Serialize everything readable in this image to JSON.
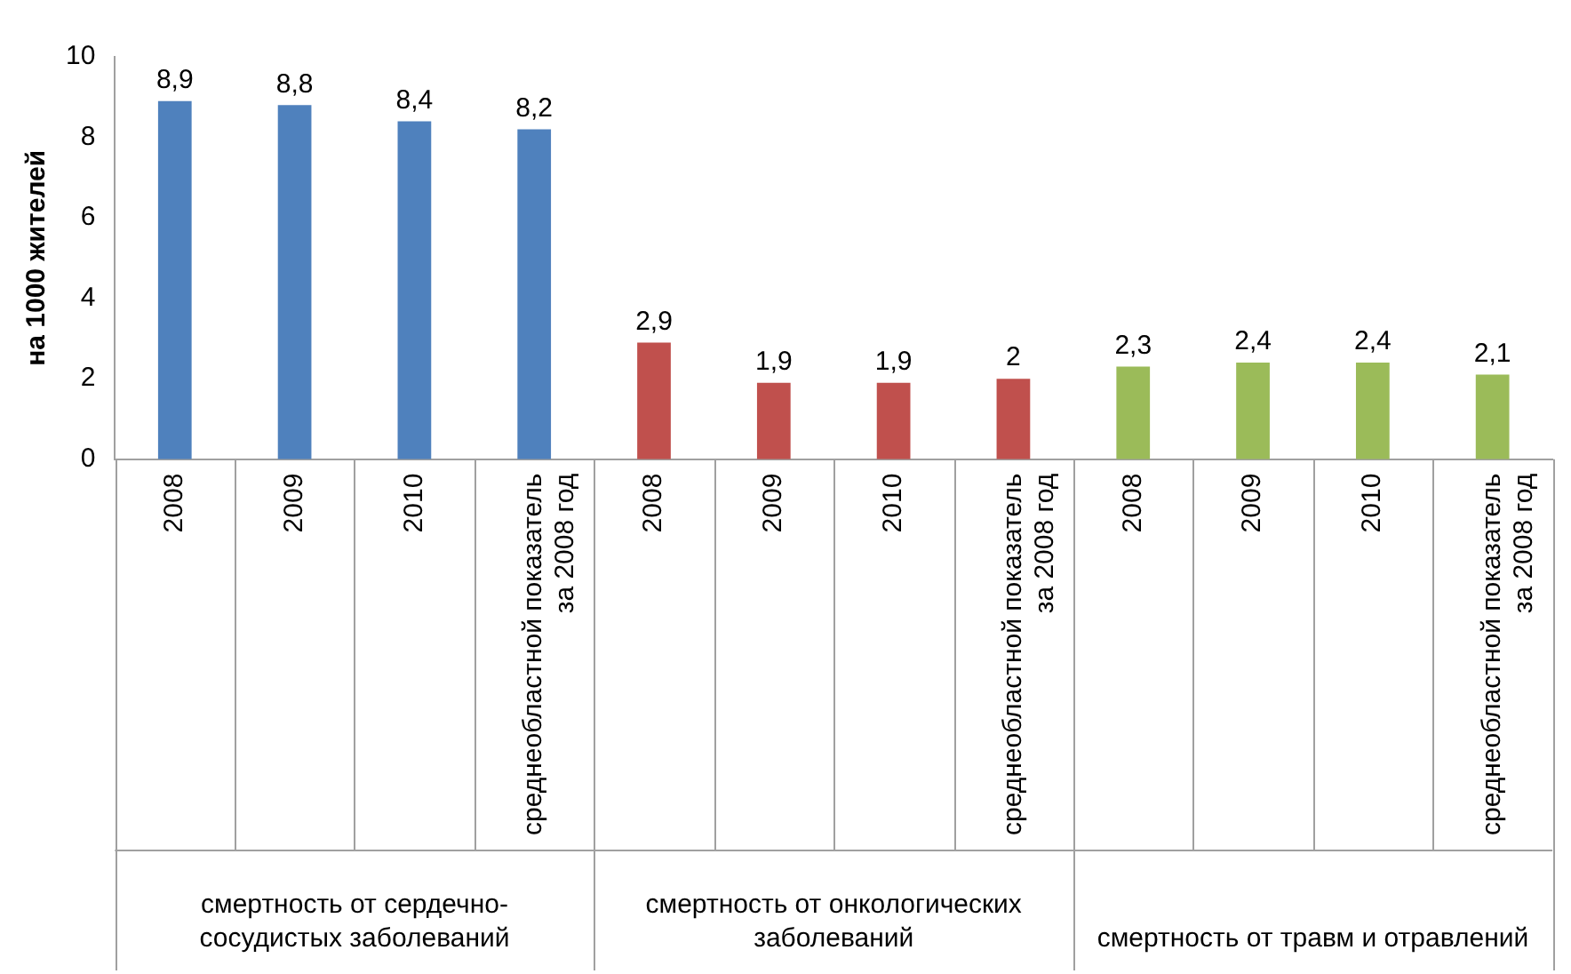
{
  "chart_data": {
    "type": "bar",
    "ylabel": "на 1000 жителей",
    "categories": [
      "2008",
      "2009",
      "2010",
      "среднеобластной показатель за 2008 год",
      "2008",
      "2009",
      "2010",
      "среднеобластной показатель за 2008 год",
      "2008",
      "2009",
      "2010",
      "среднеобластной показатель за 2008 год"
    ],
    "values": [
      8.9,
      8.8,
      8.4,
      8.2,
      2.9,
      1.9,
      1.9,
      2,
      2.3,
      2.4,
      2.4,
      2.1
    ],
    "value_labels": [
      "8,9",
      "8,8",
      "8,4",
      "8,2",
      "2,9",
      "1,9",
      "1,9",
      "2",
      "2,3",
      "2,4",
      "2,4",
      "2,1"
    ],
    "colors": [
      "#4f81bd",
      "#4f81bd",
      "#4f81bd",
      "#4f81bd",
      "#c0504d",
      "#c0504d",
      "#c0504d",
      "#c0504d",
      "#9bbb59",
      "#9bbb59",
      "#9bbb59",
      "#9bbb59"
    ],
    "annotations": [
      "смертность от сердечно-сосудистых заболеваний",
      "смертность от онкологических заболеваний",
      "смертность от травм и отравлений"
    ],
    "ylim": [
      0,
      10
    ],
    "yticks": [
      0,
      2,
      4,
      6,
      8,
      10
    ],
    "grid": false,
    "legend": false
  }
}
